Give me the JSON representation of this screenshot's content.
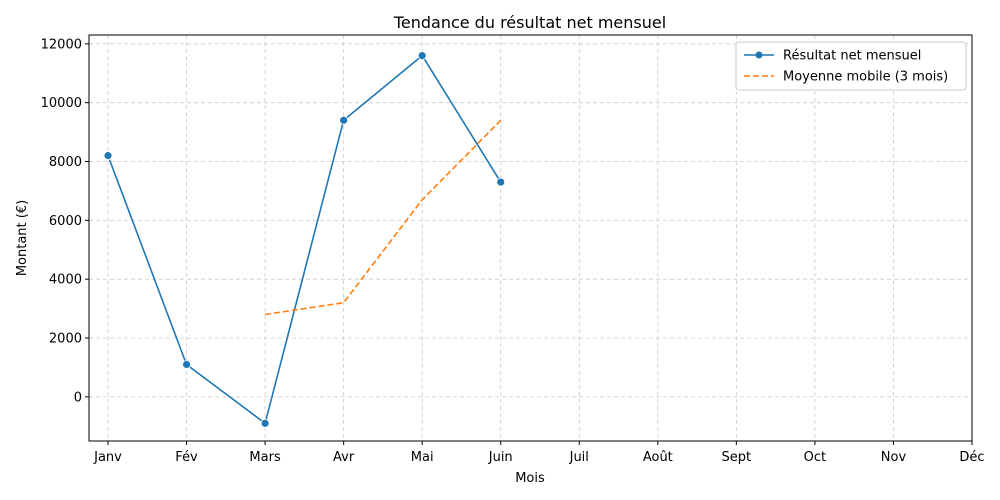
{
  "chart_data": {
    "type": "line",
    "title": "Tendance du résultat net mensuel",
    "xlabel": "Mois",
    "ylabel": "Montant (€)",
    "categories": [
      "Janv",
      "Fév",
      "Mars",
      "Avr",
      "Mai",
      "Juin",
      "Juil",
      "Août",
      "Sept",
      "Oct",
      "Nov",
      "Déc"
    ],
    "yticks": [
      0,
      2000,
      4000,
      6000,
      8000,
      10000,
      12000
    ],
    "ylim": [
      -1500,
      12300
    ],
    "grid": true,
    "legend_position": "top-right",
    "series": [
      {
        "name": "Résultat net mensuel",
        "color": "#1f77b4",
        "style": "solid",
        "marker": "circle",
        "values": [
          8200,
          1100,
          -900,
          9400,
          11600,
          7300,
          null,
          null,
          null,
          null,
          null,
          null
        ]
      },
      {
        "name": "Moyenne mobile (3 mois)",
        "color": "#ff7f0e",
        "style": "dashed",
        "marker": "none",
        "values": [
          null,
          null,
          2800,
          3200,
          6700,
          9400,
          null,
          null,
          null,
          null,
          null,
          null
        ]
      }
    ]
  }
}
